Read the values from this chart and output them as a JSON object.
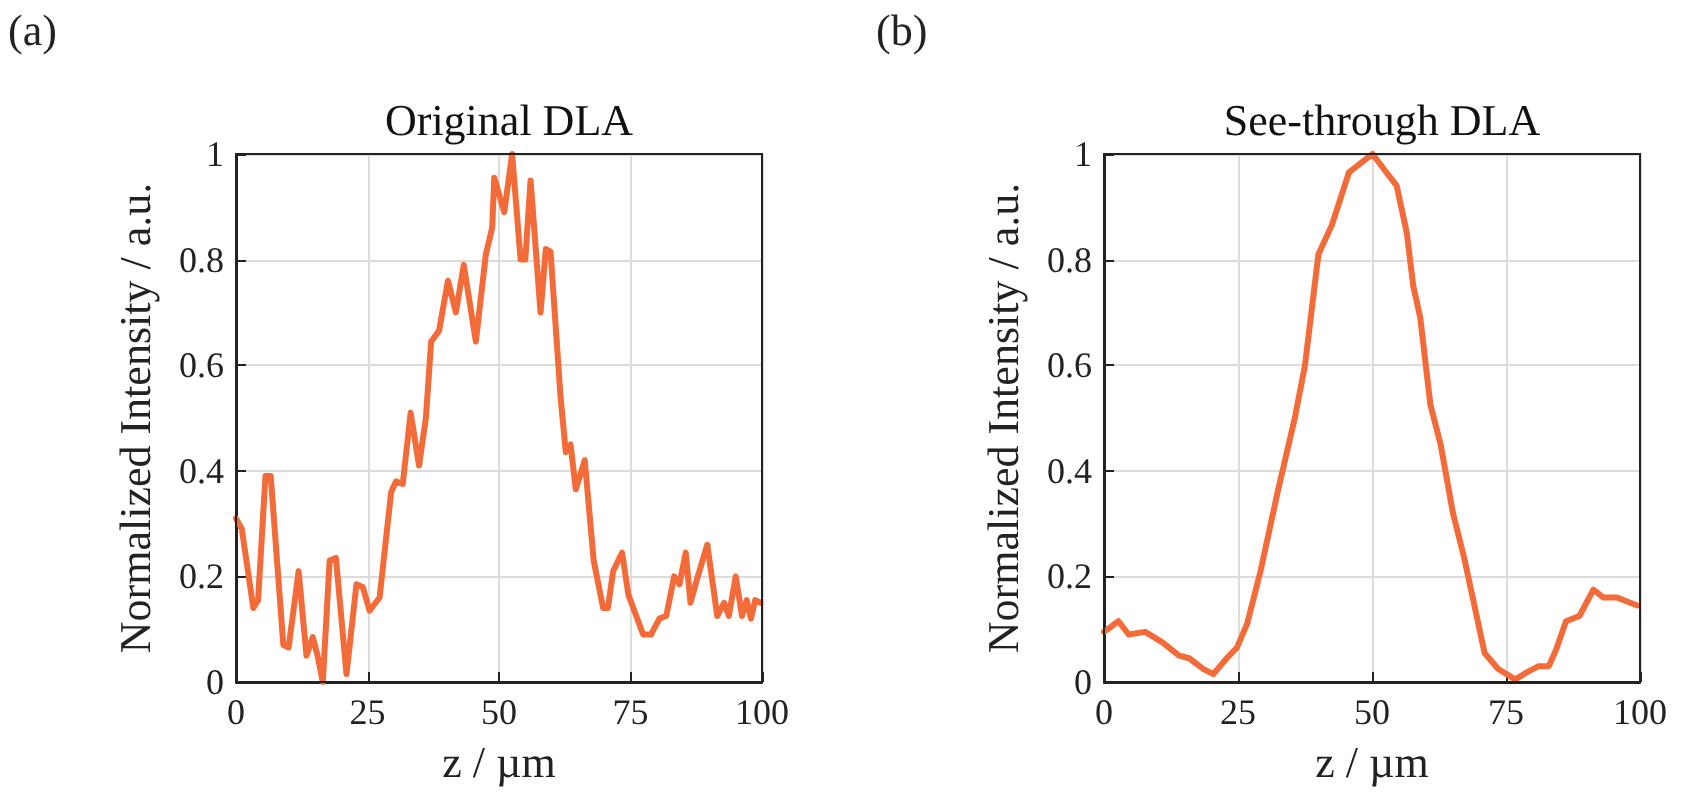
{
  "chart_data": [
    {
      "type": "line",
      "title": "Original DLA",
      "xlabel": "z / µm",
      "ylabel": "Normalized Intensity / a.u.",
      "annotations": [
        "(a)"
      ],
      "x": [
        0,
        1.1,
        3.3,
        4.2,
        5.6,
        6.6,
        9,
        10,
        11.9,
        13.4,
        14.6,
        15.5,
        16.5,
        17.8,
        19,
        21,
        22.9,
        24.1,
        25.4,
        27.3,
        29.5,
        30.4,
        31.7,
        33.2,
        34.8,
        36.1,
        37.1,
        38.6,
        40.3,
        41.8,
        43.3,
        45.6,
        47.5,
        48.7,
        49.1,
        51,
        52.5,
        54.1,
        55,
        56,
        57.9,
        58.9,
        59.8,
        61.7,
        62.7,
        63.6,
        64.6,
        66.3,
        68,
        69.8,
        70.7,
        71.7,
        73.4,
        74.6,
        76.1,
        77.4,
        78.9,
        80.5,
        81.8,
        83.3,
        84.3,
        85.5,
        86.4,
        87.8,
        89.6,
        91.5,
        92.8,
        93.7,
        95,
        96.2,
        97.1,
        97.9,
        98.7,
        99.7
      ],
      "series": [
        {
          "color": "#f26b38",
          "values": [
            0.31,
            0.29,
            0.14,
            0.155,
            0.39,
            0.39,
            0.07,
            0.065,
            0.21,
            0.05,
            0.085,
            0.05,
            0.0,
            0.23,
            0.235,
            0.015,
            0.185,
            0.18,
            0.135,
            0.16,
            0.36,
            0.38,
            0.375,
            0.51,
            0.41,
            0.5,
            0.645,
            0.665,
            0.76,
            0.7,
            0.79,
            0.645,
            0.81,
            0.86,
            0.955,
            0.89,
            1.0,
            0.8,
            0.8,
            0.95,
            0.7,
            0.82,
            0.815,
            0.54,
            0.435,
            0.45,
            0.365,
            0.42,
            0.23,
            0.14,
            0.14,
            0.21,
            0.245,
            0.165,
            0.125,
            0.09,
            0.09,
            0.12,
            0.125,
            0.2,
            0.185,
            0.245,
            0.15,
            0.2,
            0.26,
            0.125,
            0.15,
            0.125,
            0.2,
            0.125,
            0.155,
            0.12,
            0.155,
            0.15
          ]
        }
      ],
      "xlim": [
        0,
        100
      ],
      "xticks": [
        0,
        25,
        50,
        75,
        100
      ],
      "ylim": [
        0,
        1
      ],
      "yticks": [
        0,
        0.2,
        0.4,
        0.6,
        0.8,
        1
      ],
      "grid": true,
      "marker": "none",
      "line_style": "solid"
    },
    {
      "type": "line",
      "title": "See-through DLA",
      "xlabel": "z / µm",
      "ylabel": "Normalized Intensity / a.u.",
      "annotations": [
        "(b)"
      ],
      "x": [
        0,
        2.7,
        4.6,
        7.7,
        10.9,
        14,
        15.9,
        18.5,
        20.4,
        22.9,
        24.8,
        26.7,
        29.2,
        32.4,
        35.6,
        37.5,
        40,
        42.5,
        45.7,
        48.2,
        50.1,
        52.7,
        54.6,
        56.5,
        57.7,
        59,
        60.9,
        62.8,
        65.1,
        67.2,
        69.1,
        71,
        73.5,
        76.7,
        79.2,
        81.1,
        83,
        84.3,
        86.2,
        88.7,
        91.3,
        93.2,
        95.7,
        98.2,
        99.5
      ],
      "series": [
        {
          "color": "#f26b38",
          "values": [
            0.095,
            0.115,
            0.09,
            0.095,
            0.075,
            0.05,
            0.045,
            0.025,
            0.015,
            0.045,
            0.065,
            0.11,
            0.21,
            0.36,
            0.5,
            0.6,
            0.81,
            0.865,
            0.965,
            0.985,
            1.0,
            0.965,
            0.94,
            0.85,
            0.75,
            0.69,
            0.525,
            0.45,
            0.32,
            0.235,
            0.145,
            0.055,
            0.025,
            0.005,
            0.02,
            0.03,
            0.03,
            0.06,
            0.115,
            0.125,
            0.175,
            0.16,
            0.16,
            0.15,
            0.145
          ]
        }
      ],
      "xlim": [
        0,
        100
      ],
      "xticks": [
        0,
        25,
        50,
        75,
        100
      ],
      "ylim": [
        0,
        1
      ],
      "yticks": [
        0,
        0.2,
        0.4,
        0.6,
        0.8,
        1
      ],
      "grid": true,
      "marker": "none",
      "line_style": "solid"
    }
  ]
}
